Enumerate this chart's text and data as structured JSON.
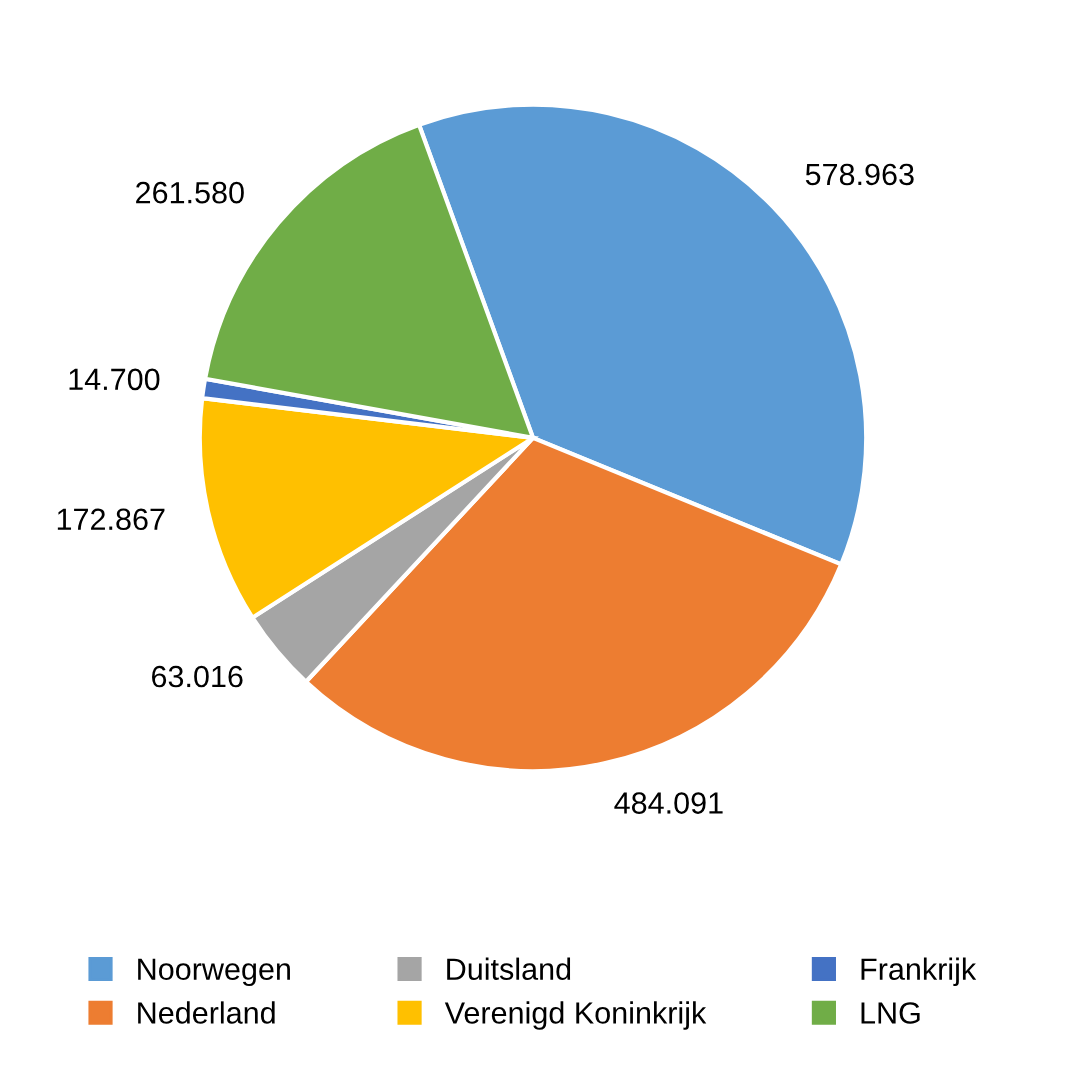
{
  "chart_data": {
    "type": "pie",
    "categories": [
      "Noorwegen",
      "Nederland",
      "Duitsland",
      "Verenigd Koninkrijk",
      "Frankrijk",
      "LNG"
    ],
    "values": [
      578963,
      484091,
      63016,
      172867,
      14700,
      261580
    ],
    "value_labels": [
      "578.963",
      "484.091",
      "63.016",
      "172.867",
      "14.700",
      "261.580"
    ],
    "colors": [
      "#5b9bd5",
      "#ed7d31",
      "#a5a5a5",
      "#ffc000",
      "#4472c4",
      "#70ad47"
    ],
    "legend": "bottom"
  }
}
